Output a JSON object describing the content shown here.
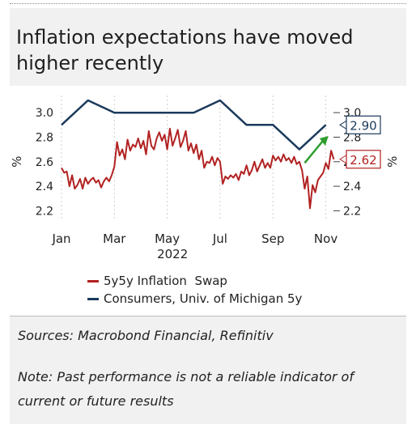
{
  "title": "Inflation expectations have moved higher recently",
  "sources": "Sources: Macrobond Financial, Refinitiv",
  "note": "Note: Past performance is not a reliable indicator of current or future results",
  "chart_data": {
    "type": "line",
    "title": "Inflation expectations have moved higher recently",
    "xlabel": "2022",
    "ylabel_left": "%",
    "ylabel_right": "%",
    "ylim": [
      2.15,
      3.1
    ],
    "yticks": [
      2.2,
      2.4,
      2.6,
      2.8,
      3.0
    ],
    "ytick_labels": [
      "2.2",
      "2.4",
      "2.6",
      "2.8",
      "3.0"
    ],
    "xlim": [
      0,
      10.35
    ],
    "xticks": [
      0,
      2,
      4,
      6,
      8,
      10
    ],
    "xtick_labels": [
      "Jan",
      "Mar",
      "May",
      "Jul",
      "Sep",
      "Nov"
    ],
    "grid": "vertical",
    "legend_position": "bottom",
    "series": [
      {
        "name": "5y5y Inflation  Swap",
        "color": "#b22222",
        "x": [
          0.0,
          0.1,
          0.2,
          0.3,
          0.4,
          0.5,
          0.6,
          0.7,
          0.8,
          0.9,
          1.0,
          1.1,
          1.2,
          1.3,
          1.4,
          1.5,
          1.6,
          1.7,
          1.8,
          1.9,
          2.0,
          2.1,
          2.2,
          2.3,
          2.4,
          2.5,
          2.6,
          2.7,
          2.8,
          2.9,
          3.0,
          3.1,
          3.2,
          3.3,
          3.4,
          3.5,
          3.6,
          3.7,
          3.8,
          3.9,
          4.0,
          4.1,
          4.2,
          4.3,
          4.4,
          4.5,
          4.6,
          4.7,
          4.8,
          4.9,
          5.0,
          5.1,
          5.2,
          5.3,
          5.4,
          5.5,
          5.6,
          5.7,
          5.8,
          5.9,
          6.0,
          6.1,
          6.2,
          6.3,
          6.4,
          6.5,
          6.6,
          6.7,
          6.8,
          6.9,
          7.0,
          7.1,
          7.2,
          7.3,
          7.4,
          7.5,
          7.6,
          7.7,
          7.8,
          7.9,
          8.0,
          8.1,
          8.2,
          8.3,
          8.4,
          8.5,
          8.6,
          8.7,
          8.8,
          8.9,
          9.0,
          9.1,
          9.2,
          9.3,
          9.4,
          9.5,
          9.6,
          9.7,
          9.8,
          9.9,
          10.0,
          10.1,
          10.2,
          10.3
        ],
        "values": [
          2.55,
          2.51,
          2.52,
          2.4,
          2.49,
          2.38,
          2.41,
          2.46,
          2.38,
          2.47,
          2.42,
          2.45,
          2.47,
          2.43,
          2.45,
          2.39,
          2.44,
          2.47,
          2.44,
          2.49,
          2.56,
          2.76,
          2.65,
          2.7,
          2.62,
          2.78,
          2.69,
          2.74,
          2.72,
          2.79,
          2.71,
          2.77,
          2.66,
          2.85,
          2.73,
          2.7,
          2.79,
          2.84,
          2.77,
          2.82,
          2.7,
          2.87,
          2.73,
          2.79,
          2.86,
          2.72,
          2.77,
          2.85,
          2.69,
          2.75,
          2.67,
          2.74,
          2.62,
          2.69,
          2.55,
          2.6,
          2.59,
          2.64,
          2.57,
          2.63,
          2.6,
          2.42,
          2.48,
          2.46,
          2.49,
          2.47,
          2.5,
          2.45,
          2.52,
          2.5,
          2.57,
          2.49,
          2.53,
          2.6,
          2.52,
          2.57,
          2.62,
          2.55,
          2.59,
          2.55,
          2.65,
          2.61,
          2.64,
          2.6,
          2.66,
          2.61,
          2.63,
          2.59,
          2.64,
          2.58,
          2.6,
          2.53,
          2.38,
          2.48,
          2.22,
          2.41,
          2.35,
          2.45,
          2.48,
          2.51,
          2.59,
          2.54,
          2.69,
          2.62
        ]
      },
      {
        "name": "Consumers, Univ. of Michigan 5y",
        "color": "#1b3a5c",
        "x": [
          0,
          1,
          2,
          3,
          4,
          5,
          6,
          7,
          8,
          9,
          10
        ],
        "values": [
          2.9,
          3.1,
          3.0,
          3.0,
          3.0,
          3.0,
          3.1,
          2.9,
          2.9,
          2.7,
          2.9
        ]
      }
    ],
    "annotations": [
      {
        "text": "2.90",
        "series": "Consumers, Univ. of Michigan 5y",
        "value": 2.9,
        "color": "#1b3a5c"
      },
      {
        "text": "2.62",
        "series": "5y5y Inflation  Swap",
        "value": 2.62,
        "color": "#b22222"
      }
    ],
    "trend_arrow": {
      "color": "#2e9e2e",
      "from": [
        9.2,
        2.59
      ],
      "to": [
        10.1,
        2.81
      ]
    }
  }
}
